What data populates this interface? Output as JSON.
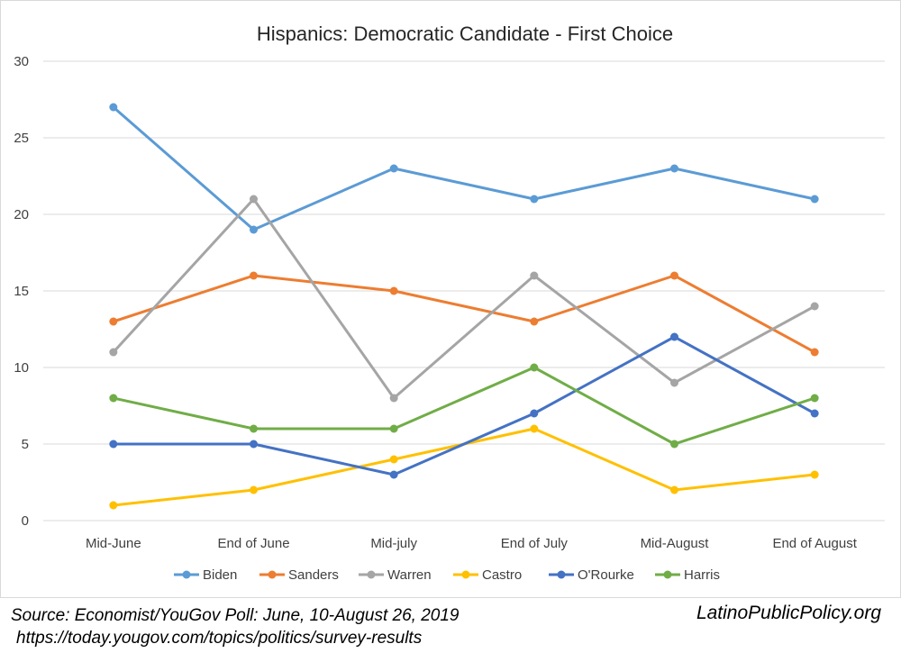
{
  "chart_data": {
    "type": "line",
    "title": "Hispanics: Democratic Candidate - First Choice",
    "categories": [
      "Mid-June",
      "End of June",
      "Mid-july",
      "End of July",
      "Mid-August",
      "End of August"
    ],
    "ylim": [
      0,
      30
    ],
    "yticks": [
      0,
      5,
      10,
      15,
      20,
      25,
      30
    ],
    "grid": true,
    "legend_position": "bottom",
    "series": [
      {
        "name": "Biden",
        "color": "#5b9bd5",
        "values": [
          27,
          19,
          23,
          21,
          23,
          21
        ]
      },
      {
        "name": "Sanders",
        "color": "#ed7d31",
        "values": [
          13,
          16,
          15,
          13,
          16,
          11
        ]
      },
      {
        "name": "Warren",
        "color": "#a5a5a5",
        "values": [
          11,
          21,
          8,
          16,
          9,
          14
        ]
      },
      {
        "name": "Castro",
        "color": "#ffc000",
        "values": [
          1,
          2,
          4,
          6,
          2,
          3
        ]
      },
      {
        "name": "O'Rourke",
        "color": "#4472c4",
        "values": [
          5,
          5,
          3,
          7,
          12,
          7
        ]
      },
      {
        "name": "Harris",
        "color": "#70ad47",
        "values": [
          8,
          6,
          6,
          10,
          5,
          8
        ]
      }
    ]
  },
  "footer": {
    "source": "Source: Economist/YouGov Poll: June, 10-August 26, 2019",
    "url": "https://today.yougov.com/topics/politics/survey-results",
    "brand": "LatinoPublicPolicy.org"
  }
}
